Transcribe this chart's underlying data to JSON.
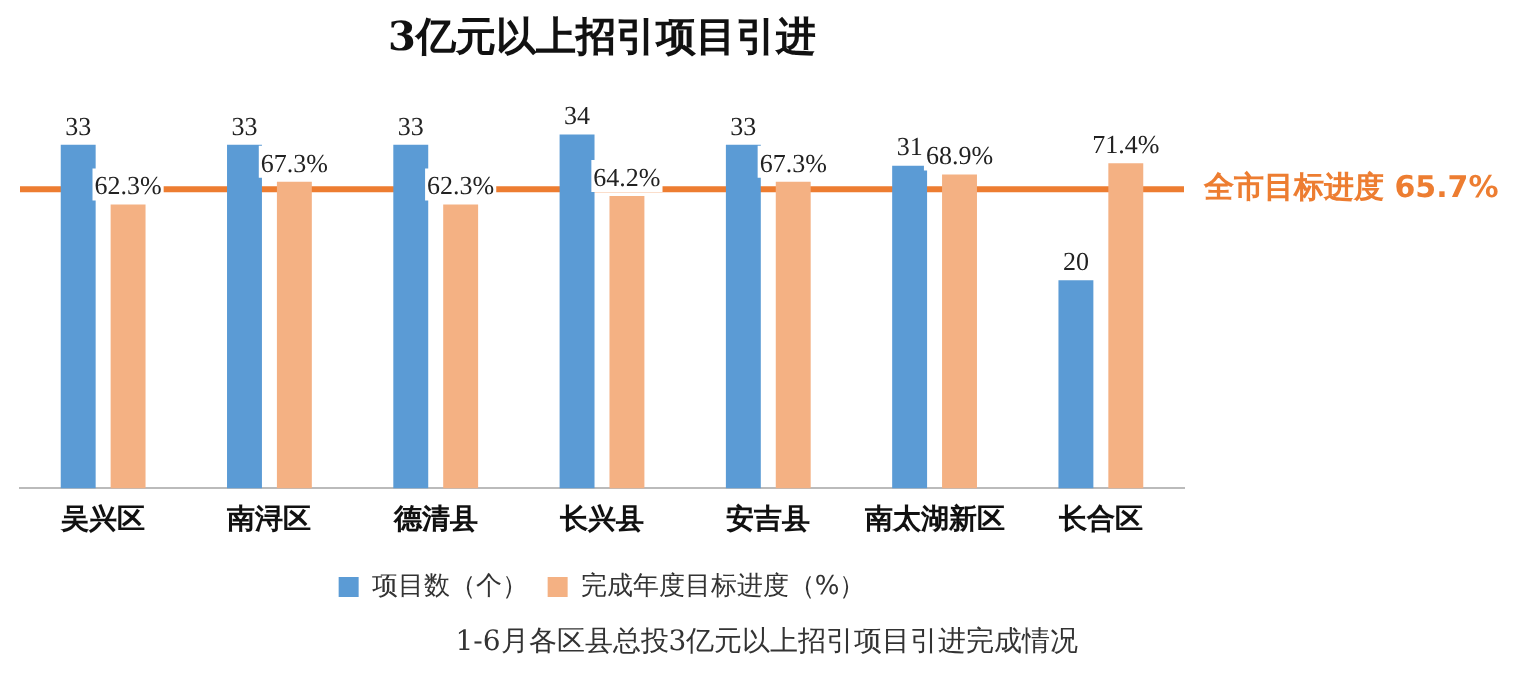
{
  "chart_data": {
    "type": "bar",
    "title": "3亿元以上招引项目引进",
    "categories": [
      "吴兴区",
      "南浔区",
      "德清县",
      "长兴县",
      "安吉县",
      "南太湖新区",
      "长合区"
    ],
    "series": [
      {
        "name": "项目数（个）",
        "color": "#5b9bd5",
        "values": [
          33,
          33,
          33,
          34,
          33,
          31,
          20
        ],
        "value_labels": [
          "33",
          "33",
          "33",
          "34",
          "33",
          "31",
          "20"
        ]
      },
      {
        "name": "完成年度目标进度（%）",
        "color": "#f4b183",
        "axis": "y2",
        "values": [
          62.3,
          67.3,
          62.3,
          64.2,
          67.3,
          68.9,
          71.4
        ],
        "value_labels": [
          "62.3%",
          "67.3%",
          "62.3%",
          "64.2%",
          "67.3%",
          "68.9%",
          "71.4%"
        ]
      }
    ],
    "ref_lines": [
      {
        "axis": "y2",
        "value": 65.7,
        "label": "全市目标进度 65.7%",
        "color": "#ed7d31"
      }
    ],
    "legend": "bottom",
    "grid": false,
    "annotations": [
      "1-6月各区县总投3亿元以上招引项目引进完成情况"
    ]
  }
}
